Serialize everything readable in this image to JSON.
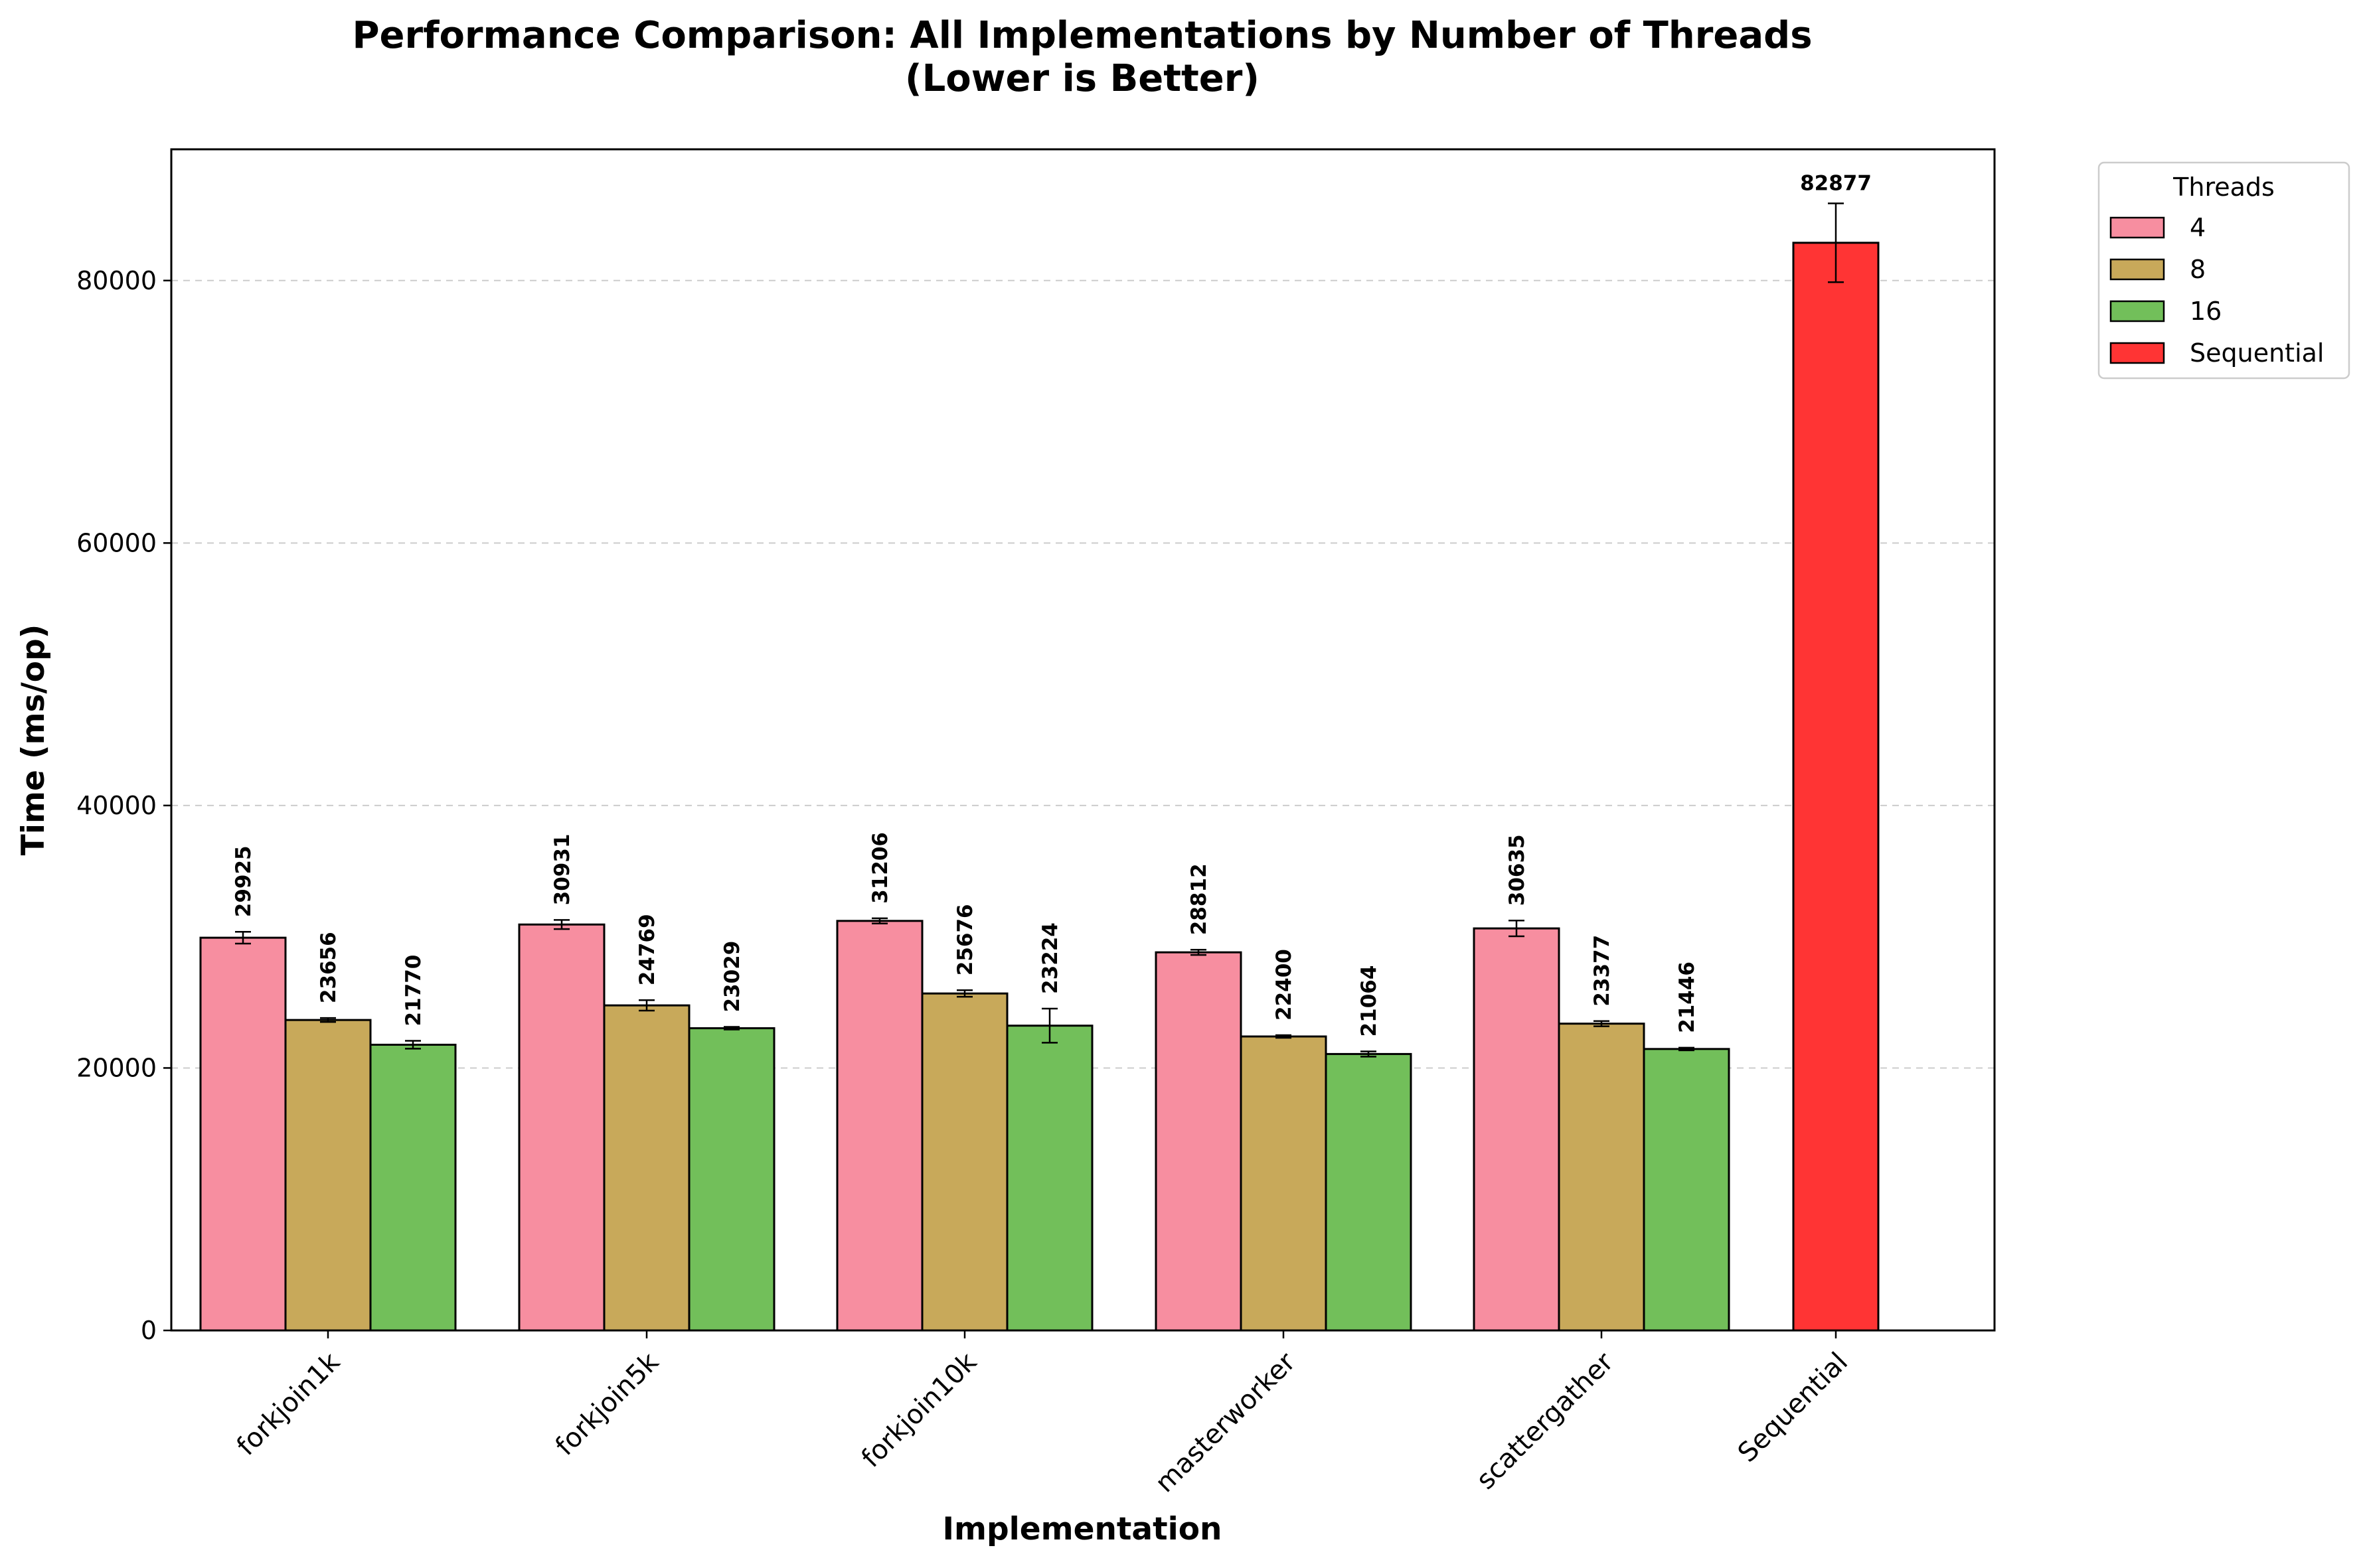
{
  "chart_data": {
    "type": "bar",
    "title": "Performance Comparison: All Implementations by Number of Threads",
    "subtitle": "(Lower is Better)",
    "xlabel": "Implementation",
    "ylabel": "Time (ms/op)",
    "ylim": [
      0,
      90000
    ],
    "yticks": [
      0,
      20000,
      40000,
      60000,
      80000
    ],
    "grid": "y, dashed",
    "legend": {
      "title": "Threads",
      "placement": "outside top-right"
    },
    "categories": [
      "forkjoin1k",
      "forkjoin5k",
      "forkjoin10k",
      "masterworker",
      "scattergather",
      "Sequential"
    ],
    "series": [
      {
        "name": "4",
        "color": "#f78ea0",
        "values": [
          29925,
          30931,
          31206,
          28812,
          30635,
          null
        ],
        "errors": [
          450,
          350,
          200,
          200,
          600,
          null
        ]
      },
      {
        "name": "8",
        "color": "#c8a95a",
        "values": [
          23656,
          24769,
          25676,
          22400,
          23377,
          null
        ],
        "errors": [
          150,
          400,
          250,
          100,
          200,
          null
        ]
      },
      {
        "name": "16",
        "color": "#72bf5a",
        "values": [
          21770,
          23029,
          23224,
          21064,
          21446,
          null
        ],
        "errors": [
          300,
          100,
          1300,
          200,
          100,
          null
        ]
      },
      {
        "name": "Sequential",
        "color": "#ff3434",
        "values": [
          null,
          null,
          null,
          null,
          null,
          82877
        ],
        "errors": [
          null,
          null,
          null,
          null,
          null,
          3000
        ]
      }
    ]
  }
}
